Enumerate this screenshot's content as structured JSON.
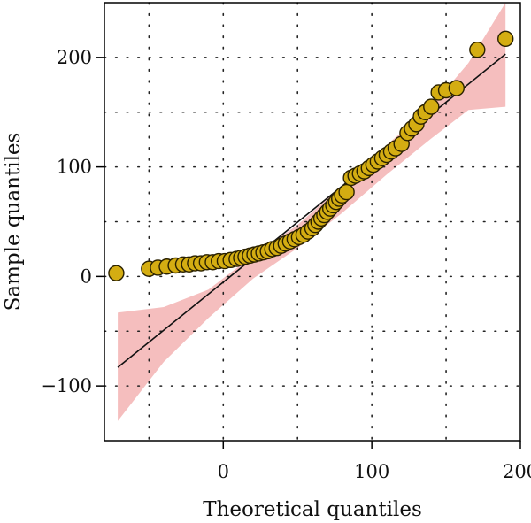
{
  "chart_data": {
    "type": "scatter",
    "title": "",
    "xlabel": "Theoretical quantiles",
    "ylabel": "Sample quantiles",
    "xlim": [
      -80,
      200
    ],
    "ylim": [
      -150,
      250
    ],
    "x_ticks": [
      0,
      100,
      200
    ],
    "y_ticks": [
      -100,
      0,
      100,
      200
    ],
    "x_tick_labels": [
      "0",
      "100",
      "200"
    ],
    "y_tick_labels": [
      "−100",
      "0",
      "100",
      "200"
    ],
    "grid": true,
    "grid_style": "dotted",
    "point_color": "#d4ad12",
    "point_edge_color": "#2a2100",
    "line_color": "#111111",
    "band_color": "#f4b7b7",
    "reference_line": {
      "x": [
        -71,
        190
      ],
      "y": [
        -83,
        203
      ]
    },
    "confidence_band": {
      "x": [
        -71,
        -40,
        -10,
        20,
        50,
        80,
        110,
        140,
        165,
        190
      ],
      "lower": [
        -132,
        -78,
        -38,
        -2,
        26,
        58,
        93,
        126,
        152,
        155
      ],
      "upper": [
        -33,
        -28,
        -12,
        19,
        47,
        83,
        120,
        155,
        195,
        250
      ]
    },
    "points": [
      {
        "x": -72,
        "y": 3
      },
      {
        "x": -50,
        "y": 7
      },
      {
        "x": -44,
        "y": 8
      },
      {
        "x": -38,
        "y": 9
      },
      {
        "x": -32,
        "y": 10
      },
      {
        "x": -27,
        "y": 11
      },
      {
        "x": -23,
        "y": 11
      },
      {
        "x": -19,
        "y": 12
      },
      {
        "x": -15,
        "y": 12
      },
      {
        "x": -11,
        "y": 13
      },
      {
        "x": -7,
        "y": 13
      },
      {
        "x": -3,
        "y": 14
      },
      {
        "x": 1,
        "y": 14
      },
      {
        "x": 5,
        "y": 15
      },
      {
        "x": 9,
        "y": 16
      },
      {
        "x": 12,
        "y": 17
      },
      {
        "x": 15,
        "y": 18
      },
      {
        "x": 18,
        "y": 19
      },
      {
        "x": 21,
        "y": 20
      },
      {
        "x": 24,
        "y": 21
      },
      {
        "x": 27,
        "y": 22
      },
      {
        "x": 30,
        "y": 23
      },
      {
        "x": 33,
        "y": 25
      },
      {
        "x": 36,
        "y": 26
      },
      {
        "x": 39,
        "y": 28
      },
      {
        "x": 42,
        "y": 30
      },
      {
        "x": 45,
        "y": 32
      },
      {
        "x": 48,
        "y": 34
      },
      {
        "x": 51,
        "y": 36
      },
      {
        "x": 54,
        "y": 38
      },
      {
        "x": 57,
        "y": 41
      },
      {
        "x": 60,
        "y": 44
      },
      {
        "x": 62,
        "y": 47
      },
      {
        "x": 64,
        "y": 50
      },
      {
        "x": 66,
        "y": 53
      },
      {
        "x": 68,
        "y": 56
      },
      {
        "x": 70,
        "y": 59
      },
      {
        "x": 72,
        "y": 62
      },
      {
        "x": 74,
        "y": 65
      },
      {
        "x": 76,
        "y": 68
      },
      {
        "x": 78,
        "y": 71
      },
      {
        "x": 80,
        "y": 74
      },
      {
        "x": 83,
        "y": 77
      },
      {
        "x": 86,
        "y": 90
      },
      {
        "x": 89,
        "y": 92
      },
      {
        "x": 92,
        "y": 94
      },
      {
        "x": 95,
        "y": 96
      },
      {
        "x": 98,
        "y": 99
      },
      {
        "x": 101,
        "y": 102
      },
      {
        "x": 104,
        "y": 105
      },
      {
        "x": 107,
        "y": 108
      },
      {
        "x": 110,
        "y": 111
      },
      {
        "x": 113,
        "y": 114
      },
      {
        "x": 116,
        "y": 117
      },
      {
        "x": 120,
        "y": 121
      },
      {
        "x": 124,
        "y": 131
      },
      {
        "x": 127,
        "y": 135
      },
      {
        "x": 130,
        "y": 139
      },
      {
        "x": 133,
        "y": 146
      },
      {
        "x": 136,
        "y": 150
      },
      {
        "x": 140,
        "y": 155
      },
      {
        "x": 145,
        "y": 168
      },
      {
        "x": 150,
        "y": 170
      },
      {
        "x": 157,
        "y": 172
      },
      {
        "x": 171,
        "y": 207
      },
      {
        "x": 190,
        "y": 217
      }
    ]
  }
}
